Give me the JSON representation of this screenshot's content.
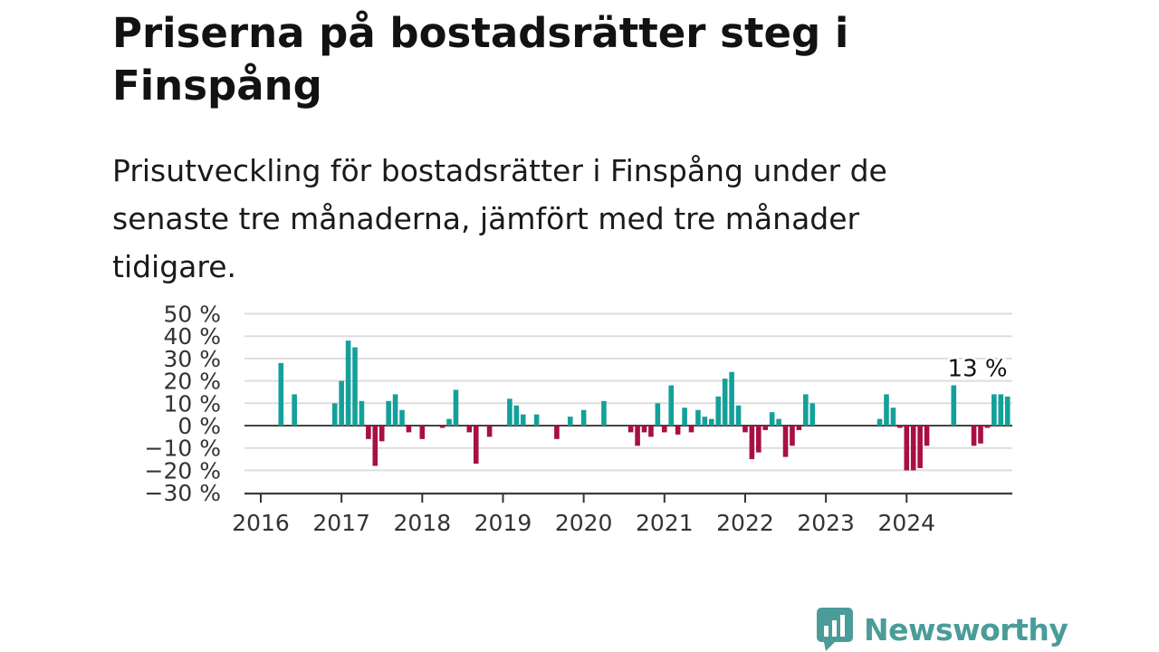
{
  "title": "Priserna på bostadsrätter steg i Finspång",
  "subtitle": "Prisutveckling för bostadsrätter i Finspång under de senaste tre månaderna, jämfört med tre månader tidigare.",
  "brand": {
    "name": "Newsworthy",
    "icon": "newsworthy-logo-icon"
  },
  "colors": {
    "positive": "#14a09a",
    "negative": "#a80f45",
    "grid": "#dddddd",
    "axis": "#444444"
  },
  "chart_data": {
    "type": "bar",
    "x_start": "2016-01",
    "y_ticks": [
      50,
      40,
      30,
      20,
      10,
      0,
      -10,
      -20,
      -30
    ],
    "y_tick_labels": [
      "50 %",
      "40 %",
      "30 %",
      "20 %",
      "10 %",
      "0 %",
      "−10 %",
      "−20 %",
      "−30 %"
    ],
    "ylim": [
      -30,
      50
    ],
    "x_tick_labels": [
      "2016",
      "2017",
      "2018",
      "2019",
      "2020",
      "2021",
      "2022",
      "2023",
      "2024"
    ],
    "annotation": {
      "text": "13 %",
      "month_index": 106
    },
    "values": [
      null,
      null,
      null,
      28,
      null,
      14,
      null,
      null,
      null,
      null,
      null,
      10,
      20,
      38,
      35,
      11,
      -6,
      -18,
      -7,
      11,
      14,
      7,
      -3,
      null,
      -6,
      null,
      null,
      -1,
      3,
      16,
      null,
      -3,
      -17,
      null,
      -5,
      null,
      null,
      12,
      9,
      5,
      null,
      5,
      null,
      null,
      -6,
      null,
      4,
      null,
      7,
      null,
      null,
      11,
      null,
      null,
      null,
      -3,
      -9,
      -3,
      -5,
      10,
      -3,
      18,
      -4,
      8,
      -3,
      7,
      4,
      3,
      13,
      21,
      24,
      9,
      -3,
      -15,
      -12,
      -2,
      6,
      3,
      -14,
      -9,
      -2,
      14,
      10,
      null,
      null,
      null,
      null,
      null,
      null,
      null,
      null,
      null,
      3,
      14,
      8,
      -1,
      -20,
      -20,
      -19,
      -9,
      null,
      null,
      null,
      18,
      null,
      null,
      -9,
      -8,
      -1,
      14,
      14,
      13
    ]
  }
}
